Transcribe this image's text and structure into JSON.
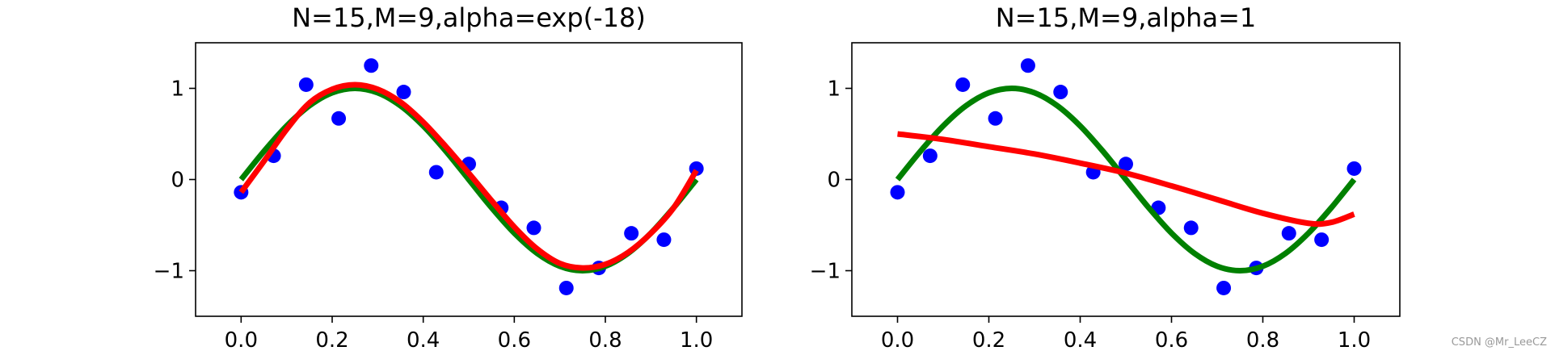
{
  "watermark": "CSDN @Mr_LeeCZ",
  "chart_data": [
    {
      "type": "scatter",
      "title": "N=15,M=9,alpha=exp(-18)",
      "xlim": [
        -0.1,
        1.1
      ],
      "ylim": [
        -1.5,
        1.5
      ],
      "x_ticks": [
        0.0,
        0.2,
        0.4,
        0.6,
        0.8,
        1.0
      ],
      "x_tick_labels": [
        "0.0",
        "0.2",
        "0.4",
        "0.6",
        "0.8",
        "1.0"
      ],
      "y_ticks": [
        1,
        0,
        -1
      ],
      "y_tick_labels": [
        "1",
        "0",
        "−1"
      ],
      "grid": false,
      "colors": {
        "points": "#0000ff",
        "true_curve": "#008000",
        "fit_curve": "#ff0000"
      },
      "points": {
        "x": [
          0.0,
          0.0714,
          0.1429,
          0.2143,
          0.2857,
          0.3571,
          0.4286,
          0.5,
          0.5714,
          0.6429,
          0.7143,
          0.7857,
          0.8571,
          0.9286,
          1.0
        ],
        "y": [
          -0.14,
          0.26,
          1.04,
          0.67,
          1.25,
          0.96,
          0.08,
          0.17,
          -0.31,
          -0.53,
          -1.19,
          -0.97,
          -0.59,
          -0.66,
          0.12
        ]
      },
      "true_curve": {
        "x": [
          0.0,
          0.05,
          0.1,
          0.15,
          0.2,
          0.25,
          0.3,
          0.35,
          0.4,
          0.45,
          0.5,
          0.55,
          0.6,
          0.65,
          0.7,
          0.75,
          0.8,
          0.85,
          0.9,
          0.95,
          1.0
        ],
        "y": [
          0.0,
          0.309,
          0.588,
          0.809,
          0.951,
          1.0,
          0.951,
          0.809,
          0.588,
          0.309,
          0.0,
          -0.309,
          -0.588,
          -0.809,
          -0.951,
          -1.0,
          -0.951,
          -0.809,
          -0.588,
          -0.309,
          0.0
        ]
      },
      "fit_curve": {
        "x": [
          0.0,
          0.05,
          0.1,
          0.15,
          0.2,
          0.25,
          0.3,
          0.35,
          0.4,
          0.45,
          0.5,
          0.55,
          0.6,
          0.65,
          0.7,
          0.75,
          0.8,
          0.85,
          0.9,
          0.95,
          1.0
        ],
        "y": [
          -0.14,
          0.2,
          0.55,
          0.84,
          0.99,
          1.04,
          0.99,
          0.85,
          0.63,
          0.36,
          0.07,
          -0.23,
          -0.52,
          -0.76,
          -0.92,
          -0.97,
          -0.93,
          -0.8,
          -0.59,
          -0.31,
          0.1
        ]
      }
    },
    {
      "type": "scatter",
      "title": "N=15,M=9,alpha=1",
      "xlim": [
        -0.1,
        1.1
      ],
      "ylim": [
        -1.5,
        1.5
      ],
      "x_ticks": [
        0.0,
        0.2,
        0.4,
        0.6,
        0.8,
        1.0
      ],
      "x_tick_labels": [
        "0.0",
        "0.2",
        "0.4",
        "0.6",
        "0.8",
        "1.0"
      ],
      "y_ticks": [
        1,
        0,
        -1
      ],
      "y_tick_labels": [
        "1",
        "0",
        "−1"
      ],
      "grid": false,
      "colors": {
        "points": "#0000ff",
        "true_curve": "#008000",
        "fit_curve": "#ff0000"
      },
      "points": {
        "x": [
          0.0,
          0.0714,
          0.1429,
          0.2143,
          0.2857,
          0.3571,
          0.4286,
          0.5,
          0.5714,
          0.6429,
          0.7143,
          0.7857,
          0.8571,
          0.9286,
          1.0
        ],
        "y": [
          -0.14,
          0.26,
          1.04,
          0.67,
          1.25,
          0.96,
          0.08,
          0.17,
          -0.31,
          -0.53,
          -1.19,
          -0.97,
          -0.59,
          -0.66,
          0.12
        ]
      },
      "true_curve": {
        "x": [
          0.0,
          0.05,
          0.1,
          0.15,
          0.2,
          0.25,
          0.3,
          0.35,
          0.4,
          0.45,
          0.5,
          0.55,
          0.6,
          0.65,
          0.7,
          0.75,
          0.8,
          0.85,
          0.9,
          0.95,
          1.0
        ],
        "y": [
          0.0,
          0.309,
          0.588,
          0.809,
          0.951,
          1.0,
          0.951,
          0.809,
          0.588,
          0.309,
          0.0,
          -0.309,
          -0.588,
          -0.809,
          -0.951,
          -1.0,
          -0.951,
          -0.809,
          -0.588,
          -0.309,
          0.0
        ]
      },
      "fit_curve": {
        "x": [
          0.0,
          0.1,
          0.2,
          0.3,
          0.4,
          0.5,
          0.6,
          0.7,
          0.8,
          0.9,
          0.95,
          1.0
        ],
        "y": [
          0.5,
          0.44,
          0.36,
          0.28,
          0.18,
          0.07,
          -0.07,
          -0.22,
          -0.37,
          -0.48,
          -0.47,
          -0.38
        ]
      }
    }
  ]
}
